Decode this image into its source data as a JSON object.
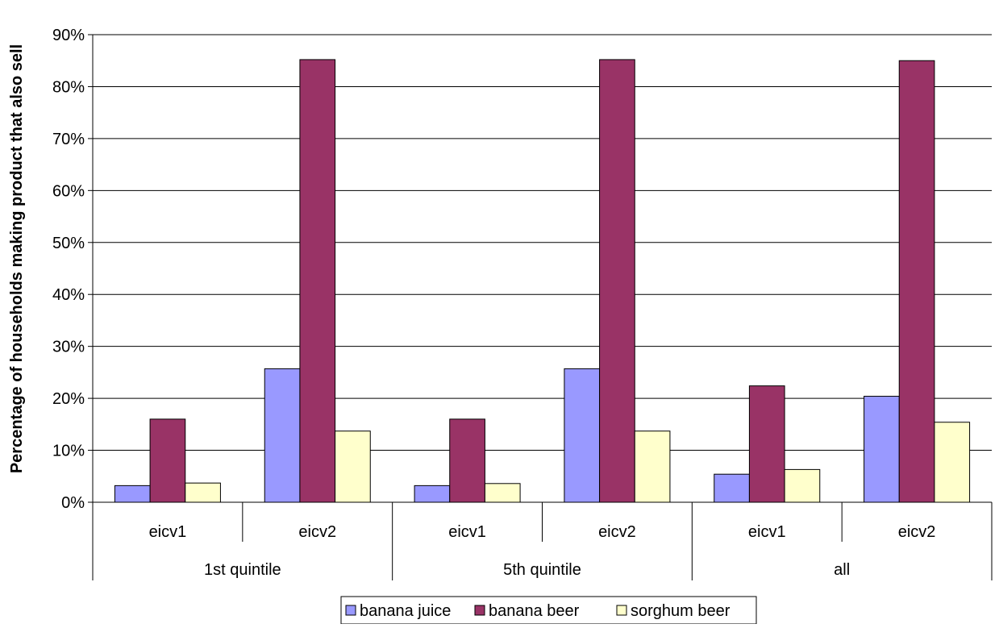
{
  "chart_data": {
    "type": "bar",
    "title": "",
    "ylabel": "Percentage of households making product  that also sell",
    "xlabel": "",
    "ylim": [
      0,
      90
    ],
    "yticks": [
      0,
      10,
      20,
      30,
      40,
      50,
      60,
      70,
      80,
      90
    ],
    "ytick_labels": [
      "0%",
      "10%",
      "20%",
      "30%",
      "40%",
      "50%",
      "60%",
      "70%",
      "80%",
      "90%"
    ],
    "grid": true,
    "legend_position": "bottom",
    "groups": [
      "1st quintile",
      "5th quintile",
      "all"
    ],
    "categories": [
      "eicv1",
      "eicv2",
      "eicv1",
      "eicv2",
      "eicv1",
      "eicv2"
    ],
    "series": [
      {
        "name": "banana juice",
        "color": "#9999ff",
        "values": [
          3.2,
          25.7,
          3.2,
          25.7,
          5.4,
          20.4
        ]
      },
      {
        "name": "banana beer",
        "color": "#993366",
        "values": [
          16.0,
          85.2,
          16.0,
          85.2,
          22.4,
          85.0
        ]
      },
      {
        "name": "sorghum beer",
        "color": "#ffffcc",
        "values": [
          3.7,
          13.7,
          3.6,
          13.7,
          6.3,
          15.4
        ]
      }
    ]
  }
}
